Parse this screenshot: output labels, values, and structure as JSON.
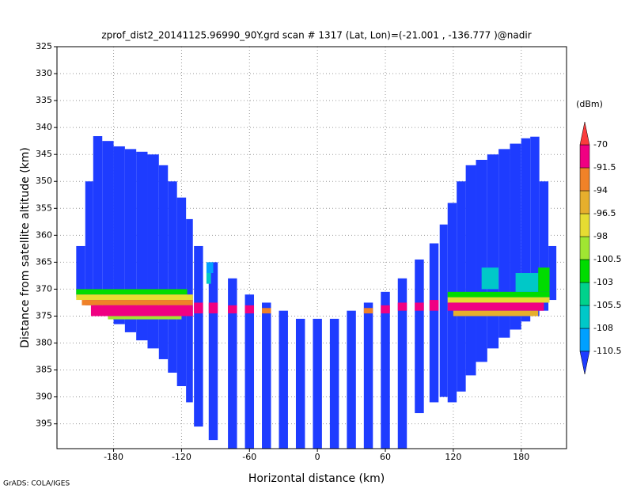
{
  "chart_data": {
    "type": "heatmap",
    "title": "zprof_dist2_20141125.96990_90Y.grd   scan # 1317  (Lat, Lon)=(-21.001 , -136.777 )@nadir",
    "x_label": "Horizontal distance (km)",
    "y_label": "Distance from satellite altitude (km)",
    "colorbar_label": "(dBm)",
    "footer": "GrADS: COLA/IGES",
    "xlim": [
      -230,
      220
    ],
    "ylim": [
      325,
      399.6
    ],
    "y_inverted": true,
    "grid": true,
    "xticks": [
      -180,
      -120,
      -60,
      0,
      60,
      120,
      180
    ],
    "yticks": [
      325,
      330,
      335,
      340,
      345,
      350,
      355,
      360,
      365,
      370,
      375,
      380,
      385,
      390,
      395
    ],
    "levels": [
      -110.5,
      -108,
      -105.5,
      -103,
      -100.5,
      -98,
      -96.5,
      -94,
      -91.5,
      -70
    ],
    "colors": [
      "#1e3cff",
      "#00a0ff",
      "#00c8c8",
      "#00d28c",
      "#00dc00",
      "#a0e632",
      "#e6dc32",
      "#e6af2d",
      "#f08228",
      "#f00082",
      "#fa3c3c"
    ],
    "cells": [
      [
        -213,
        -205,
        362,
        371.5,
        -112
      ],
      [
        -205,
        -198,
        350,
        373,
        -112
      ],
      [
        -198,
        -190,
        341.6,
        374,
        -112
      ],
      [
        -190,
        -180,
        342.5,
        375,
        -112
      ],
      [
        -180,
        -170,
        343.5,
        376.5,
        -112
      ],
      [
        -170,
        -160,
        344,
        378,
        -112
      ],
      [
        -160,
        -150,
        344.5,
        379.5,
        -112
      ],
      [
        -150,
        -140,
        345,
        381,
        -112
      ],
      [
        -140,
        -132,
        347,
        383,
        -112
      ],
      [
        -132,
        -124,
        350,
        385.5,
        -112
      ],
      [
        -124,
        -116,
        353,
        388,
        -112
      ],
      [
        -116,
        -110,
        357,
        391,
        -112
      ],
      [
        108,
        115,
        358,
        390,
        -112
      ],
      [
        115,
        123,
        354,
        391,
        -112
      ],
      [
        123,
        131,
        350,
        389,
        -112
      ],
      [
        131,
        140,
        347,
        386,
        -112
      ],
      [
        140,
        150,
        346,
        383.5,
        -112
      ],
      [
        150,
        160,
        345,
        381,
        -112
      ],
      [
        160,
        170,
        344,
        379,
        -112
      ],
      [
        170,
        180,
        343,
        377.5,
        -112
      ],
      [
        180,
        188,
        342,
        376,
        -112
      ],
      [
        188,
        196,
        341.7,
        375,
        -112
      ],
      [
        196,
        204,
        350,
        374,
        -112
      ],
      [
        204,
        211,
        362,
        372,
        -112
      ],
      [
        -109,
        -101,
        362,
        395.5,
        -112
      ],
      [
        -96,
        -88,
        365,
        398,
        -112
      ],
      [
        -79,
        -71,
        368,
        399.6,
        -112
      ],
      [
        -64,
        -56,
        371,
        399.6,
        -112
      ],
      [
        -49,
        -41,
        372.5,
        399.6,
        -112
      ],
      [
        -34,
        -26,
        374,
        399.6,
        -112
      ],
      [
        -19,
        -11,
        375.5,
        399.6,
        -112
      ],
      [
        -4,
        4,
        375.5,
        399.6,
        -112
      ],
      [
        11,
        19,
        375.5,
        399.6,
        -112
      ],
      [
        26,
        34,
        374,
        399.6,
        -112
      ],
      [
        41,
        49,
        372.5,
        399.6,
        -112
      ],
      [
        56,
        64,
        370.5,
        399.6,
        -112
      ],
      [
        71,
        79,
        368,
        399.6,
        -112
      ],
      [
        86,
        94,
        364.5,
        393,
        -112
      ],
      [
        99,
        107,
        361.5,
        391,
        -112
      ],
      [
        -213,
        -115,
        370,
        371,
        -102
      ],
      [
        -213,
        -110,
        371,
        372,
        -97
      ],
      [
        -208,
        -110,
        372,
        373,
        -93
      ],
      [
        -200,
        -110,
        373,
        375,
        -85
      ],
      [
        -185,
        -120,
        375,
        375.6,
        -99
      ],
      [
        -109,
        -101,
        372.5,
        374.5,
        -85
      ],
      [
        -96,
        -88,
        372.5,
        374.5,
        -85
      ],
      [
        -79,
        -71,
        373,
        374.5,
        -85
      ],
      [
        -64,
        -56,
        373,
        374.5,
        -85
      ],
      [
        -49,
        -41,
        373.5,
        374.5,
        -92
      ],
      [
        41,
        49,
        373.5,
        374.5,
        -92
      ],
      [
        56,
        64,
        373,
        374.5,
        -85
      ],
      [
        71,
        79,
        372.5,
        374,
        -85
      ],
      [
        86,
        94,
        372.5,
        374,
        -85
      ],
      [
        99,
        107,
        372,
        374,
        -85
      ],
      [
        115,
        205,
        370.5,
        371.5,
        -102
      ],
      [
        115,
        205,
        371.5,
        372.5,
        -97
      ],
      [
        115,
        200,
        372.5,
        374,
        -85
      ],
      [
        120,
        195,
        374,
        375,
        -95
      ],
      [
        145,
        160,
        366,
        370,
        -107
      ],
      [
        175,
        195,
        367,
        370.5,
        -107
      ],
      [
        195,
        205,
        366,
        370.5,
        -102
      ],
      [
        -98,
        -92,
        365,
        367,
        -109
      ],
      [
        -98,
        -94,
        367,
        369,
        -107
      ]
    ]
  }
}
